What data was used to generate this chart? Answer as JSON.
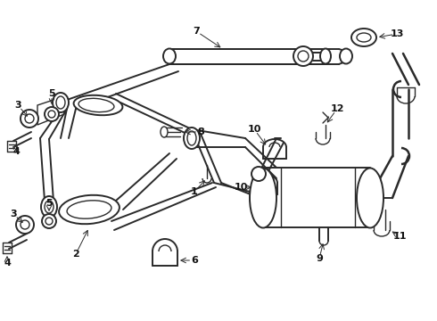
{
  "bg_color": "#ffffff",
  "line_color": "#2a2a2a",
  "label_color": "#111111",
  "figsize": [
    4.9,
    3.6
  ],
  "dpi": 100,
  "xlim": [
    0,
    490
  ],
  "ylim": [
    0,
    360
  ]
}
